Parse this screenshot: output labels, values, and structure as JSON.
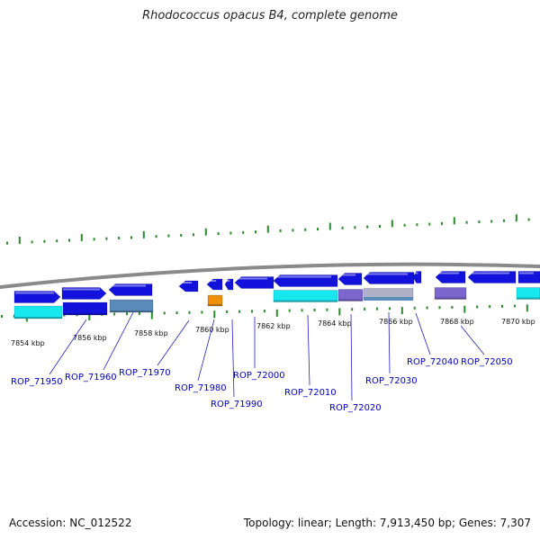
{
  "title": "Rhodococcus opacus B4, complete genome",
  "footer": {
    "accession": "Accession: NC_012522",
    "summary": "Topology: linear; Length: 7,913,450 bp; Genes: 7,307"
  },
  "colors": {
    "backbone": "#8a8a8a",
    "tick": "#2a8a2a",
    "label": "#0000b8",
    "leader": "#2020c0",
    "gene_blue": "#1212dc",
    "gene_cyan": "#18e8f0",
    "gene_orange": "#f0900a",
    "gene_purple": "#7a66cc",
    "gene_steel": "#5a8ab8",
    "gene_grey": "#b0b0c8"
  },
  "scale_labels": [
    "7854 kbp",
    "7856 kbp",
    "7858 kbp",
    "7860 kbp",
    "7862 kbp",
    "7864 kbp",
    "7866 kbp",
    "7868 kbp",
    "7870 kbp"
  ],
  "gene_labels": [
    "ROP_71950",
    "ROP_71960",
    "ROP_71970",
    "ROP_71980",
    "ROP_71990",
    "ROP_72000",
    "ROP_72010",
    "ROP_72020",
    "ROP_72030",
    "ROP_72040",
    "ROP_72050"
  ]
}
